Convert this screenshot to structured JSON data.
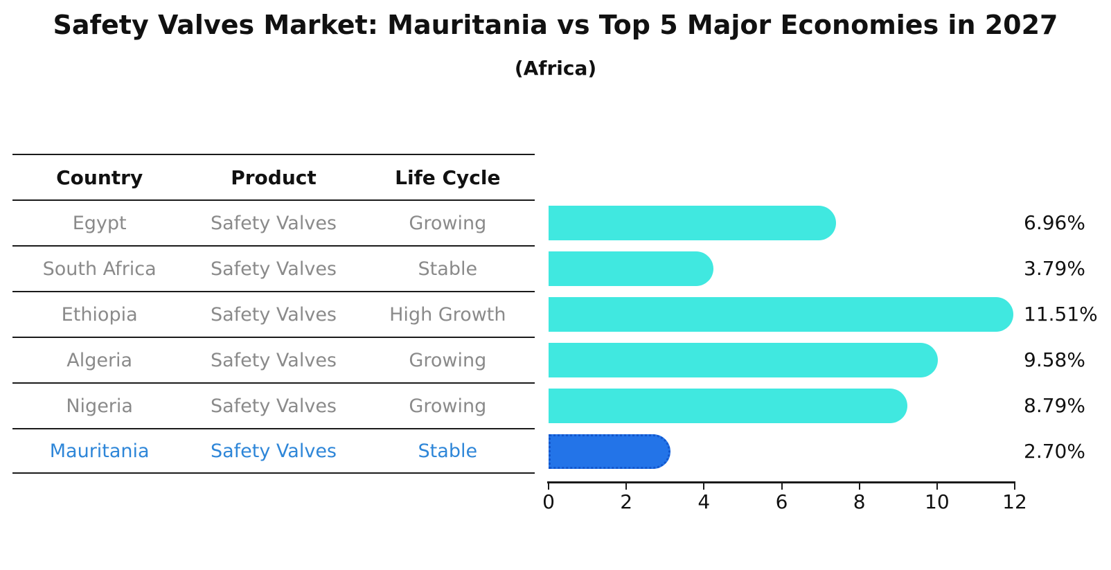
{
  "title": "Safety Valves Market: Mauritania vs Top 5 Major Economies in 2027",
  "subtitle": "(Africa)",
  "table": {
    "headers": [
      "Country",
      "Product",
      "Life Cycle"
    ],
    "rows": [
      {
        "country": "Egypt",
        "product": "Safety Valves",
        "life_cycle": "Growing",
        "highlight": false
      },
      {
        "country": "South Africa",
        "product": "Safety Valves",
        "life_cycle": "Stable",
        "highlight": false
      },
      {
        "country": "Ethiopia",
        "product": "Safety Valves",
        "life_cycle": "High Growth",
        "highlight": false
      },
      {
        "country": "Algeria",
        "product": "Safety Valves",
        "life_cycle": "Growing",
        "highlight": false
      },
      {
        "country": "Nigeria",
        "product": "Safety Valves",
        "life_cycle": "Growing",
        "highlight": false
      },
      {
        "country": "Mauritania",
        "product": "Safety Valves",
        "life_cycle": "Stable",
        "highlight": true
      }
    ]
  },
  "chart_data": {
    "type": "bar",
    "orientation": "horizontal",
    "categories": [
      "Egypt",
      "South Africa",
      "Ethiopia",
      "Algeria",
      "Nigeria",
      "Mauritania"
    ],
    "values": [
      6.96,
      3.79,
      11.51,
      9.58,
      8.79,
      2.7
    ],
    "value_labels": [
      "6.96%",
      "3.79%",
      "11.51%",
      "9.58%",
      "8.79%",
      "2.70%"
    ],
    "xlim": [
      0,
      12
    ],
    "x_ticks": [
      0,
      2,
      4,
      6,
      8,
      10,
      12
    ],
    "x_tick_labels": [
      "0",
      "2",
      "4",
      "6",
      "8",
      "10",
      "12"
    ],
    "highlight_index": 5,
    "grid": false,
    "legend": false,
    "title": "Safety Valves Market: Mauritania vs Top 5 Major Economies in 2027 (Africa)"
  },
  "colors": {
    "bar": "#40e8e0",
    "highlight_bar": "#2374e8",
    "highlight_bar_border": "#1256cc",
    "highlight_text": "#2e86d8",
    "muted_text": "#8a8a8a",
    "text": "#111111",
    "background": "#ffffff"
  }
}
